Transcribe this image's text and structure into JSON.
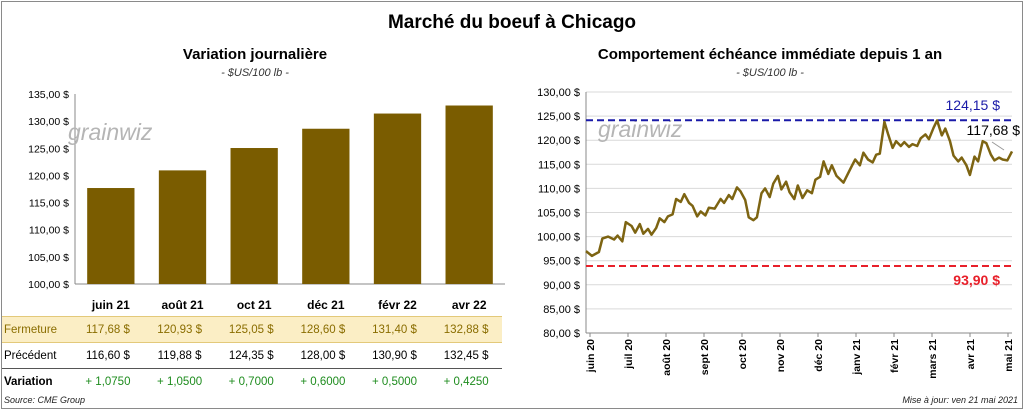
{
  "title": "Marché du boeuf à Chicago",
  "left_panel": {
    "title": "Variation  journalière",
    "unit": "- $US/100 lb -",
    "watermark": "grainwiz"
  },
  "right_panel": {
    "title": "Comportement  échéance immédiate depuis 1 an",
    "unit": "- $US/100 lb -",
    "watermark": "grainwiz",
    "high_label": "124,15 $",
    "low_label": "93,90 $",
    "last_label": "117,68 $"
  },
  "table": {
    "rows": [
      {
        "label": "Fermeture",
        "values": [
          "117,68  $",
          "120,93  $",
          "125,05  $",
          "128,60  $",
          "131,40  $",
          "132,88  $"
        ]
      },
      {
        "label": "Précédent",
        "values": [
          "116,60  $",
          "119,88  $",
          "124,35  $",
          "128,00  $",
          "130,90  $",
          "132,45  $"
        ]
      },
      {
        "label": "Variation",
        "values": [
          "+ 1,0750",
          "+ 1,0500",
          "+ 0,7000",
          "+ 0,6000",
          "+ 0,5000",
          "+ 0,4250"
        ]
      }
    ]
  },
  "footer": {
    "source": "Source: CME Group",
    "updated": "Mise à jour: ven 21 mai 2021"
  },
  "colors": {
    "bar": "#7a5c00",
    "line": "#7d6412",
    "high_line": "#1a1aa8",
    "low_line": "#e8202a",
    "grid": "#d9d9d9"
  },
  "chart_data": [
    {
      "type": "bar",
      "title": "Variation  journalière",
      "subtitle": "- $US/100 lb -",
      "categories": [
        "juin 21",
        "août 21",
        "oct 21",
        "déc 21",
        "févr 22",
        "avr 22"
      ],
      "values": [
        117.68,
        120.93,
        125.05,
        128.6,
        131.4,
        132.88
      ],
      "ylim": [
        100,
        135
      ],
      "yticks": [
        "100,00 $",
        "105,00 $",
        "110,00 $",
        "115,00 $",
        "120,00 $",
        "125,00 $",
        "130,00 $",
        "135,00 $"
      ],
      "grid": false
    },
    {
      "type": "line",
      "title": "Comportement  échéance immédiate depuis 1 an",
      "subtitle": "- $US/100 lb -",
      "ylim": [
        80,
        130
      ],
      "yticks": [
        "80,00 $",
        "85,00 $",
        "90,00 $",
        "95,00 $",
        "100,00 $",
        "105,00 $",
        "110,00 $",
        "115,00 $",
        "120,00 $",
        "125,00 $",
        "130,00 $"
      ],
      "xticks": [
        "juin 20",
        "juil 20",
        "août 20",
        "sept 20",
        "oct 20",
        "nov 20",
        "déc 20",
        "janv 21",
        "févr 21",
        "mars 21",
        "avr 21",
        "mai 21"
      ],
      "x_range": [
        "2020-05-22",
        "2021-05-21"
      ],
      "high": 124.15,
      "low": 93.9,
      "grid": true,
      "series": [
        {
          "points": [
            [
              "2020-05-22",
              97.0
            ],
            [
              "2020-05-27",
              96.0
            ],
            [
              "2020-06-02",
              96.8
            ],
            [
              "2020-06-05",
              99.6
            ],
            [
              "2020-06-10",
              100.0
            ],
            [
              "2020-06-15",
              99.4
            ],
            [
              "2020-06-18",
              100.2
            ],
            [
              "2020-06-22",
              99.0
            ],
            [
              "2020-06-25",
              103.0
            ],
            [
              "2020-06-30",
              102.2
            ],
            [
              "2020-07-03",
              100.8
            ],
            [
              "2020-07-07",
              102.6
            ],
            [
              "2020-07-10",
              100.6
            ],
            [
              "2020-07-14",
              101.6
            ],
            [
              "2020-07-17",
              100.4
            ],
            [
              "2020-07-21",
              101.8
            ],
            [
              "2020-07-24",
              103.8
            ],
            [
              "2020-07-28",
              103.0
            ],
            [
              "2020-07-31",
              104.2
            ],
            [
              "2020-08-04",
              104.6
            ],
            [
              "2020-08-07",
              107.8
            ],
            [
              "2020-08-11",
              107.2
            ],
            [
              "2020-08-14",
              108.8
            ],
            [
              "2020-08-18",
              107.0
            ],
            [
              "2020-08-21",
              106.4
            ],
            [
              "2020-08-25",
              104.2
            ],
            [
              "2020-08-28",
              105.2
            ],
            [
              "2020-09-01",
              104.4
            ],
            [
              "2020-09-04",
              106.0
            ],
            [
              "2020-09-09",
              105.8
            ],
            [
              "2020-09-14",
              107.8
            ],
            [
              "2020-09-17",
              107.0
            ],
            [
              "2020-09-21",
              108.6
            ],
            [
              "2020-09-24",
              107.8
            ],
            [
              "2020-09-28",
              110.2
            ],
            [
              "2020-10-01",
              109.4
            ],
            [
              "2020-10-05",
              107.6
            ],
            [
              "2020-10-08",
              104.0
            ],
            [
              "2020-10-12",
              103.4
            ],
            [
              "2020-10-15",
              104.0
            ],
            [
              "2020-10-19",
              109.0
            ],
            [
              "2020-10-22",
              110.0
            ],
            [
              "2020-10-26",
              108.2
            ],
            [
              "2020-10-29",
              111.0
            ],
            [
              "2020-11-02",
              112.6
            ],
            [
              "2020-11-05",
              109.8
            ],
            [
              "2020-11-09",
              111.4
            ],
            [
              "2020-11-12",
              109.2
            ],
            [
              "2020-11-16",
              107.8
            ],
            [
              "2020-11-19",
              110.6
            ],
            [
              "2020-11-23",
              108.0
            ],
            [
              "2020-11-27",
              109.6
            ],
            [
              "2020-12-01",
              109.0
            ],
            [
              "2020-12-04",
              111.8
            ],
            [
              "2020-12-08",
              112.4
            ],
            [
              "2020-12-11",
              115.6
            ],
            [
              "2020-12-15",
              113.0
            ],
            [
              "2020-12-18",
              114.8
            ],
            [
              "2020-12-22",
              112.6
            ],
            [
              "2020-12-28",
              111.2
            ],
            [
              "2021-01-04",
              114.6
            ],
            [
              "2021-01-07",
              116.0
            ],
            [
              "2021-01-11",
              114.8
            ],
            [
              "2021-01-14",
              117.4
            ],
            [
              "2021-01-18",
              116.0
            ],
            [
              "2021-01-22",
              115.4
            ],
            [
              "2021-01-25",
              117.0
            ],
            [
              "2021-01-28",
              117.2
            ],
            [
              "2021-02-01",
              123.8
            ],
            [
              "2021-02-04",
              121.4
            ],
            [
              "2021-02-08",
              118.4
            ],
            [
              "2021-02-11",
              119.8
            ],
            [
              "2021-02-15",
              118.8
            ],
            [
              "2021-02-18",
              119.6
            ],
            [
              "2021-02-22",
              118.6
            ],
            [
              "2021-02-25",
              119.2
            ],
            [
              "2021-03-01",
              118.8
            ],
            [
              "2021-03-04",
              120.4
            ],
            [
              "2021-03-08",
              121.2
            ],
            [
              "2021-03-11",
              120.2
            ],
            [
              "2021-03-15",
              122.6
            ],
            [
              "2021-03-18",
              124.1
            ],
            [
              "2021-03-22",
              121.0
            ],
            [
              "2021-03-25",
              122.4
            ],
            [
              "2021-03-29",
              119.8
            ],
            [
              "2021-04-01",
              116.8
            ],
            [
              "2021-04-05",
              115.6
            ],
            [
              "2021-04-08",
              116.4
            ],
            [
              "2021-04-12",
              114.8
            ],
            [
              "2021-04-15",
              112.8
            ],
            [
              "2021-04-19",
              116.6
            ],
            [
              "2021-04-22",
              115.6
            ],
            [
              "2021-04-26",
              119.8
            ],
            [
              "2021-04-29",
              119.4
            ],
            [
              "2021-05-03",
              117.0
            ],
            [
              "2021-05-06",
              115.8
            ],
            [
              "2021-05-10",
              116.4
            ],
            [
              "2021-05-13",
              116.0
            ],
            [
              "2021-05-17",
              115.8
            ],
            [
              "2021-05-21",
              117.68
            ]
          ]
        }
      ]
    }
  ]
}
